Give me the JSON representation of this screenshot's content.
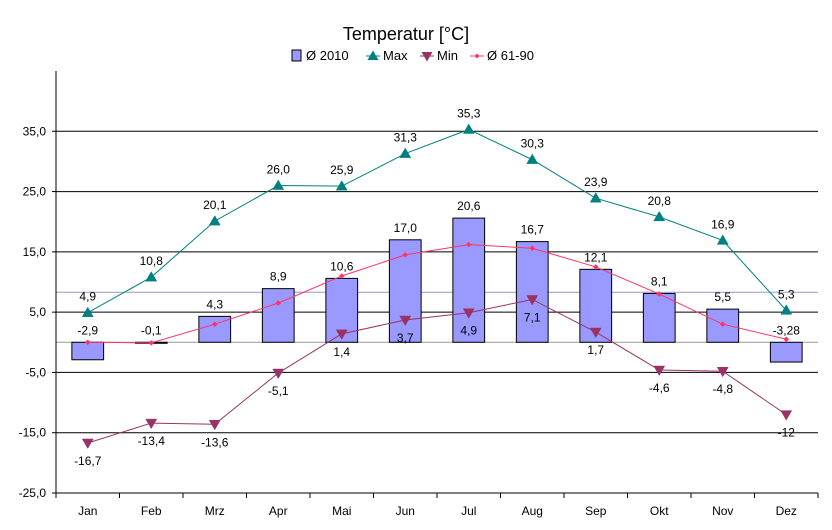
{
  "chart_data": {
    "type": "bar",
    "title": "Temperatur [°C]",
    "categories": [
      "Jan",
      "Feb",
      "Mrz",
      "Apr",
      "Mai",
      "Jun",
      "Jul",
      "Aug",
      "Sep",
      "Okt",
      "Nov",
      "Dez"
    ],
    "ylim": [
      -25,
      45
    ],
    "yticks": [
      35,
      25,
      15,
      5,
      -5,
      -15,
      -25
    ],
    "ytick_labels": [
      "35,0",
      "25,0",
      "15,0",
      "5,0",
      "-5,0",
      "-15,0",
      "-25,0"
    ],
    "grid": true,
    "legend_position": "top",
    "series": [
      {
        "name": "Ø 2010",
        "kind": "bar",
        "color": "#9999ff",
        "values": [
          -2.9,
          -0.1,
          4.3,
          8.9,
          10.6,
          17.0,
          20.6,
          16.7,
          12.1,
          8.1,
          5.5,
          -3.28
        ],
        "labels": [
          "-2,9",
          "-0,1",
          "4,3",
          "8,9",
          "10,6",
          "17,0",
          "20,6",
          "16,7",
          "12,1",
          "8,1",
          "5,5",
          "-3,28"
        ]
      },
      {
        "name": "Max",
        "kind": "line",
        "marker": "triangle-up",
        "color": "#008080",
        "values": [
          4.9,
          10.8,
          20.1,
          26.0,
          25.9,
          31.3,
          35.3,
          30.3,
          23.9,
          20.8,
          16.9,
          5.3
        ],
        "labels": [
          "4,9",
          "10,8",
          "20,1",
          "26,0",
          "25,9",
          "31,3",
          "35,3",
          "30,3",
          "23,9",
          "20,8",
          "16,9",
          "5,3"
        ]
      },
      {
        "name": "Min",
        "kind": "line",
        "marker": "triangle-down",
        "color": "#993366",
        "values": [
          -16.7,
          -13.4,
          -13.6,
          -5.1,
          1.4,
          3.7,
          4.9,
          7.1,
          1.7,
          -4.6,
          -4.8,
          -12
        ],
        "labels": [
          "-16,7",
          "-13,4",
          "-13,6",
          "-5,1",
          "1,4",
          "3,7",
          "4,9",
          "7,1",
          "1,7",
          "-4,6",
          "-4,8",
          "-12"
        ]
      },
      {
        "name": "Ø 61-90",
        "kind": "line",
        "marker": "diamond",
        "color": "#ff3366",
        "values": [
          0.0,
          -0.1,
          3.0,
          6.5,
          11.0,
          14.5,
          16.2,
          15.6,
          12.5,
          8.0,
          3.0,
          0.5
        ],
        "labels": []
      }
    ]
  }
}
